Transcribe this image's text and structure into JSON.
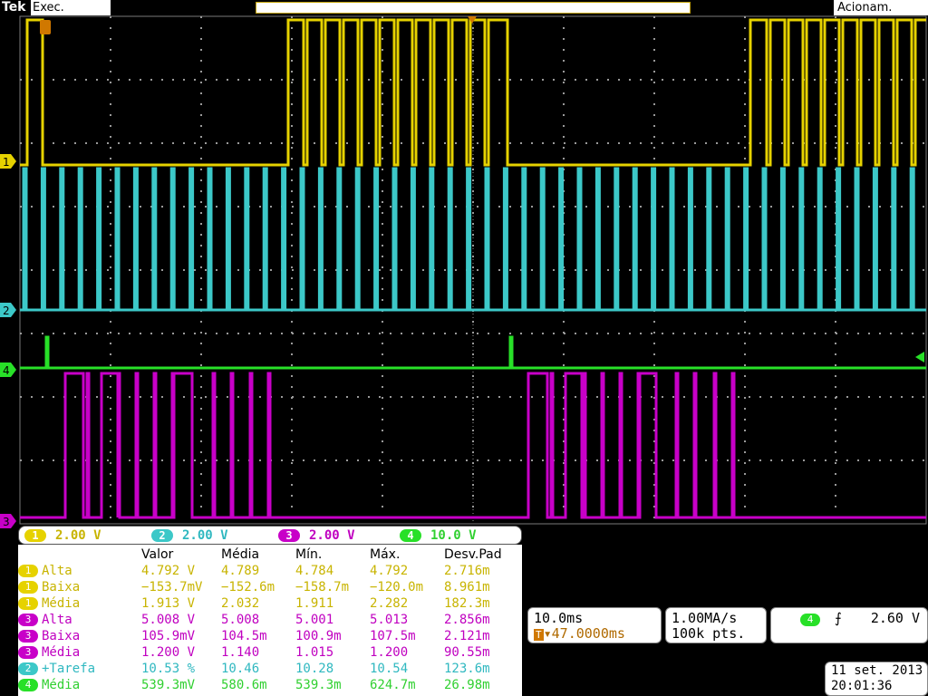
{
  "header": {
    "brand": "Tek",
    "run_state": "Exec.",
    "trigger_state": "Acionam.",
    "record_marker": "T"
  },
  "colors": {
    "ch1": "#e6d200",
    "ch2": "#3cc8c8",
    "ch3": "#c800c8",
    "ch4": "#28e028",
    "grid": "#9a9a9a"
  },
  "channels": [
    {
      "id": "1",
      "label": "1",
      "scale": "2.00 V",
      "color": "#e6d200"
    },
    {
      "id": "2",
      "label": "2",
      "scale": "2.00 V",
      "color": "#3cc8c8"
    },
    {
      "id": "3",
      "label": "3",
      "scale": "2.00 V",
      "color": "#c800c8"
    },
    {
      "id": "4",
      "label": "4",
      "scale": "10.0 V",
      "color": "#28e028"
    }
  ],
  "measurements": {
    "headers": [
      "Valor",
      "Média",
      "Mín.",
      "Máx.",
      "Desv.Pad"
    ],
    "rows": [
      {
        "ch": "1",
        "name": "Alta",
        "values": [
          "4.792 V",
          "4.789",
          "4.784",
          "4.792",
          "2.716m"
        ],
        "color": "c1"
      },
      {
        "ch": "1",
        "name": "Baixa",
        "values": [
          "−153.7mV",
          "−152.6m",
          "−158.7m",
          "−120.0m",
          "8.961m"
        ],
        "color": "c1"
      },
      {
        "ch": "1",
        "name": "Média",
        "values": [
          "1.913 V",
          "2.032",
          "1.911",
          "2.282",
          "182.3m"
        ],
        "color": "c1"
      },
      {
        "ch": "3",
        "name": "Alta",
        "values": [
          "5.008 V",
          "5.008",
          "5.001",
          "5.013",
          "2.856m"
        ],
        "color": "c3"
      },
      {
        "ch": "3",
        "name": "Baixa",
        "values": [
          "105.9mV",
          "104.5m",
          "100.9m",
          "107.5m",
          "2.121m"
        ],
        "color": "c3"
      },
      {
        "ch": "3",
        "name": "Média",
        "values": [
          "1.200 V",
          "1.140",
          "1.015",
          "1.200",
          "90.55m"
        ],
        "color": "c3"
      },
      {
        "ch": "2",
        "name": "+Tarefa",
        "values": [
          "10.53 %",
          "10.46",
          "10.28",
          "10.54",
          "123.6m"
        ],
        "color": "c2"
      },
      {
        "ch": "4",
        "name": "Média",
        "values": [
          "539.3mV",
          "580.6m",
          "539.3m",
          "624.7m",
          "26.98m"
        ],
        "color": "c4"
      }
    ]
  },
  "timebase": {
    "scale": "10.0ms",
    "position": "▾47.0000ms"
  },
  "acquisition": {
    "rate": "1.00MA/s",
    "points": "100k pts."
  },
  "trigger": {
    "source": "4",
    "slope": "⨍",
    "level": "2.60 V"
  },
  "datetime": {
    "date": "11 set.  2013",
    "time": "20:01:36"
  }
}
